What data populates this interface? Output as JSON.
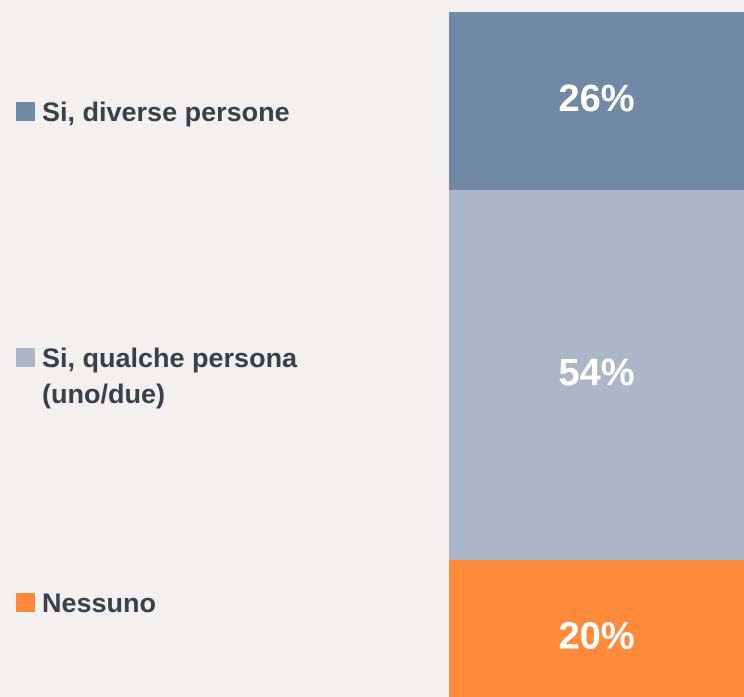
{
  "chart_data": {
    "type": "bar",
    "stacked": true,
    "categories": [
      null
    ],
    "series": [
      {
        "name": "Nessuno",
        "color": "#ff8b3a",
        "values": [
          20
        ],
        "value_labels": [
          "20%"
        ]
      },
      {
        "name": "Si, qualche persona (uno/due)",
        "color": "#abb6c8",
        "values": [
          54
        ],
        "value_labels": [
          "54%"
        ]
      },
      {
        "name": "Si, diverse persone",
        "color": "#7289a6",
        "values": [
          26
        ],
        "value_labels": [
          "26%"
        ]
      }
    ],
    "ylim": [
      0,
      100
    ]
  }
}
